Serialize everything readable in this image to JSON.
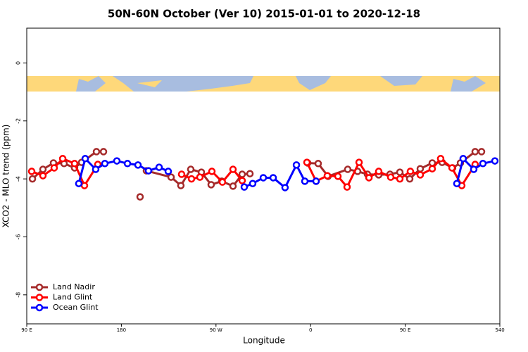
{
  "chart_data": {
    "type": "line",
    "title": "50N-60N October (Ver 10)   2015-01-01 to 2020-12-18",
    "x_label": "Longitude",
    "y_label": "XCO2 - MLO trend (ppm)",
    "xlim": [
      90,
      540
    ],
    "xticks": [
      {
        "value": 90,
        "label": "90 E"
      },
      180,
      {
        "value": 270,
        "label": "90 W"
      },
      {
        "value": 360,
        "label": "0"
      },
      {
        "value": 450,
        "label": "90 E"
      },
      540
    ],
    "ylim": [
      -9,
      1.2
    ],
    "yticks": [
      0,
      -2,
      -4,
      -6,
      -8
    ],
    "legend": "bottom-left",
    "series": [
      {
        "name": "Land Nadir",
        "color": "#a52a2a",
        "x": [
          95.4,
          105.4,
          115.4,
          125.5,
          135.5,
          142.2,
          156.3,
          163.0,
          null,
          197.8,
          null,
          203.8,
          227.3,
          236.6,
          246.0,
          256.1,
          265.4,
          275.5,
          286.2,
          294.9,
          302.3,
          null,
          357.2,
          367.2,
          376.6,
          395.3,
          404.7,
          414.1,
          424.8,
          435.5,
          444.9,
          454.3,
          464.3,
          475.7,
          485.1,
          495.1,
          502.5,
          516.5,
          522.6
        ],
        "values": [
          -4.0,
          -3.67,
          -3.45,
          -3.47,
          -3.62,
          -3.43,
          -3.06,
          -3.06,
          null,
          -4.62,
          null,
          -3.72,
          -3.94,
          -4.23,
          -3.67,
          -3.77,
          -4.2,
          -4.08,
          -4.25,
          -3.84,
          -3.82,
          null,
          -3.45,
          -3.47,
          -3.91,
          -3.67,
          -3.74,
          -3.84,
          -3.86,
          -3.84,
          -3.77,
          -4.0,
          -3.65,
          -3.45,
          -3.43,
          -3.62,
          -3.45,
          -3.06,
          -3.06
        ]
      },
      {
        "name": "Land Glint",
        "color": "#ff0000",
        "x": [
          94.7,
          105.4,
          116.1,
          124.2,
          135.5,
          144.9,
          157.6,
          null,
          237.3,
          246.7,
          254.7,
          266.1,
          276.1,
          286.2,
          294.9,
          null,
          356.5,
          365.2,
          375.9,
          386.0,
          394.7,
          406.1,
          415.5,
          424.8,
          436.2,
          444.9,
          454.9,
          464.3,
          475.7,
          483.7,
          494.5,
          503.8,
          516.5
        ],
        "values": [
          -3.74,
          -3.89,
          -3.62,
          -3.3,
          -3.47,
          -4.23,
          -3.5,
          null,
          -3.84,
          -4.0,
          -3.94,
          -3.74,
          -4.11,
          -3.67,
          -4.06,
          null,
          -3.43,
          -4.08,
          -3.89,
          -3.91,
          -4.28,
          -3.43,
          -3.96,
          -3.74,
          -3.94,
          -4.0,
          -3.74,
          -3.86,
          -3.65,
          -3.3,
          -3.62,
          -4.23,
          -3.5
        ]
      },
      {
        "name": "Ocean Glint",
        "color": "#0000ff",
        "x": [
          139.5,
          145.6,
          155.6,
          164.3,
          175.7,
          185.8,
          195.8,
          205.8,
          215.9,
          224.6,
          null,
          296.9,
          304.9,
          315.0,
          324.4,
          335.7,
          346.5,
          354.5,
          365.2,
          null,
          499.1,
          505.1,
          515.2,
          523.9,
          535.3
        ],
        "values": [
          -4.16,
          -3.3,
          -3.67,
          -3.47,
          -3.38,
          -3.47,
          -3.52,
          -3.72,
          -3.6,
          -3.74,
          null,
          -4.28,
          -4.16,
          -3.96,
          -3.96,
          -4.3,
          -3.52,
          -4.08,
          -4.08,
          null,
          -4.16,
          -3.3,
          -3.67,
          -3.47,
          -3.38
        ]
      }
    ]
  }
}
